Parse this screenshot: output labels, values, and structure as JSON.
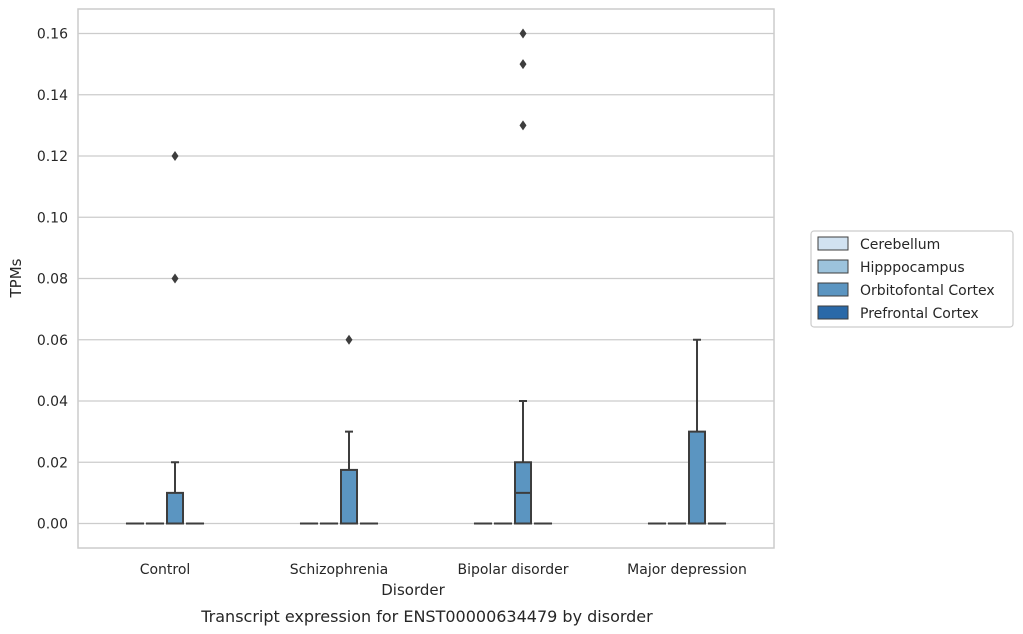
{
  "chart_data": {
    "type": "box",
    "title": "",
    "caption": "Transcript expression for ENST00000634479 by disorder",
    "xlabel": "Disorder",
    "ylabel": "TPMs",
    "ylim": [
      -0.008,
      0.168
    ],
    "yticks": [
      "0.00",
      "0.02",
      "0.04",
      "0.06",
      "0.08",
      "0.10",
      "0.12",
      "0.14",
      "0.16"
    ],
    "grid": "horizontal",
    "legend_position": "right",
    "categories": [
      "Control",
      "Schizophrenia",
      "Bipolar disorder",
      "Major depression"
    ],
    "series": [
      {
        "name": "Cerebellum",
        "color": "#d1e2f1",
        "boxes": [
          {
            "q1": 0,
            "median": 0,
            "q3": 0,
            "whisker_low": 0,
            "whisker_high": 0,
            "outliers": []
          },
          {
            "q1": 0,
            "median": 0,
            "q3": 0,
            "whisker_low": 0,
            "whisker_high": 0,
            "outliers": []
          },
          {
            "q1": 0,
            "median": 0,
            "q3": 0,
            "whisker_low": 0,
            "whisker_high": 0,
            "outliers": []
          },
          {
            "q1": 0,
            "median": 0,
            "q3": 0,
            "whisker_low": 0,
            "whisker_high": 0,
            "outliers": []
          }
        ]
      },
      {
        "name": "Hipppocampus",
        "color": "#9cc3dc",
        "boxes": [
          {
            "q1": 0,
            "median": 0,
            "q3": 0,
            "whisker_low": 0,
            "whisker_high": 0,
            "outliers": []
          },
          {
            "q1": 0,
            "median": 0,
            "q3": 0,
            "whisker_low": 0,
            "whisker_high": 0,
            "outliers": []
          },
          {
            "q1": 0,
            "median": 0,
            "q3": 0,
            "whisker_low": 0,
            "whisker_high": 0,
            "outliers": []
          },
          {
            "q1": 0,
            "median": 0,
            "q3": 0,
            "whisker_low": 0,
            "whisker_high": 0,
            "outliers": []
          }
        ]
      },
      {
        "name": "Orbitofontal Cortex",
        "color": "#5b95c1",
        "boxes": [
          {
            "q1": 0,
            "median": 0,
            "q3": 0.01,
            "whisker_low": 0,
            "whisker_high": 0.02,
            "outliers": [
              0.08,
              0.12
            ]
          },
          {
            "q1": 0,
            "median": 0,
            "q3": 0.0175,
            "whisker_low": 0,
            "whisker_high": 0.03,
            "outliers": [
              0.06
            ]
          },
          {
            "q1": 0,
            "median": 0.01,
            "q3": 0.02,
            "whisker_low": 0,
            "whisker_high": 0.04,
            "outliers": [
              0.13,
              0.15,
              0.16
            ]
          },
          {
            "q1": 0,
            "median": 0,
            "q3": 0.03,
            "whisker_low": 0,
            "whisker_high": 0.06,
            "outliers": []
          }
        ]
      },
      {
        "name": "Prefrontal Cortex",
        "color": "#2a69a8",
        "boxes": [
          {
            "q1": 0,
            "median": 0,
            "q3": 0,
            "whisker_low": 0,
            "whisker_high": 0,
            "outliers": []
          },
          {
            "q1": 0,
            "median": 0,
            "q3": 0,
            "whisker_low": 0,
            "whisker_high": 0,
            "outliers": []
          },
          {
            "q1": 0,
            "median": 0,
            "q3": 0,
            "whisker_low": 0,
            "whisker_high": 0,
            "outliers": []
          },
          {
            "q1": 0,
            "median": 0,
            "q3": 0,
            "whisker_low": 0,
            "whisker_high": 0,
            "outliers": []
          }
        ]
      }
    ]
  },
  "colors": {
    "grid": "#cccccc",
    "frame": "#cccccc",
    "edge": "#3d3d3d",
    "text": "#262626"
  }
}
